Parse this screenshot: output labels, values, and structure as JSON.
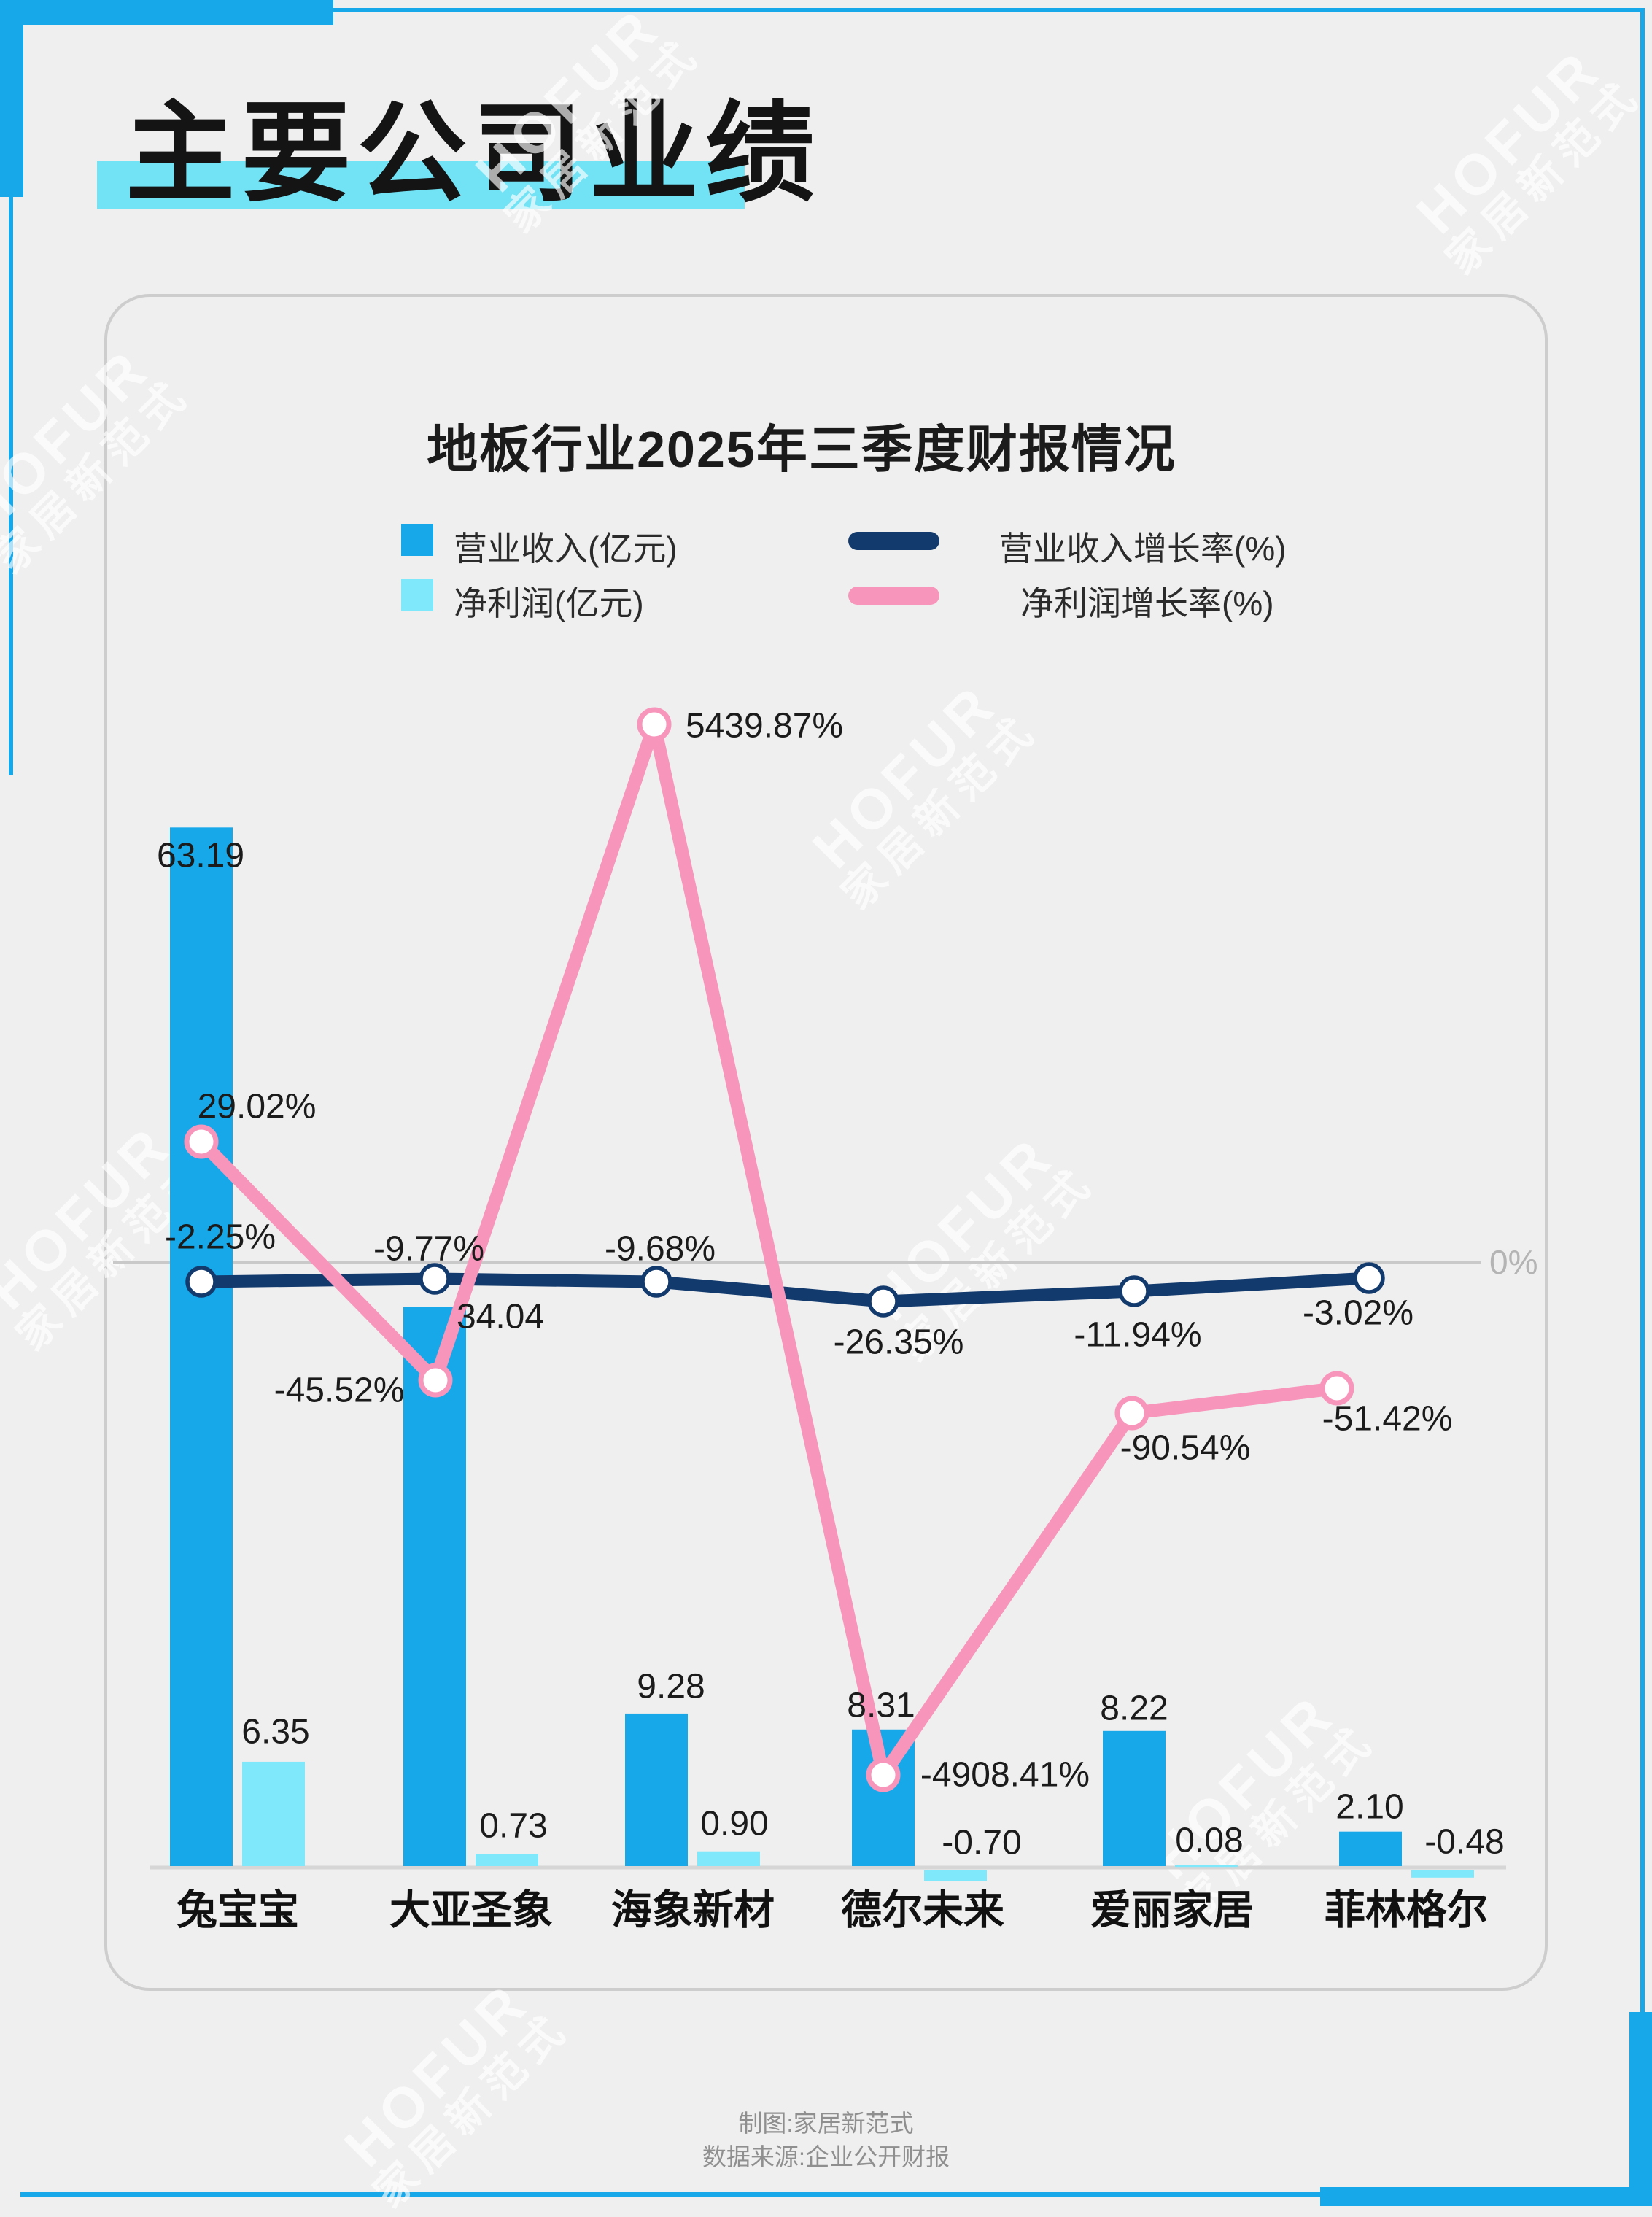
{
  "page": {
    "header_title": "主要公司业绩",
    "footer": {
      "line1": "制图:家居新范式",
      "line2": "数据来源:企业公开财报"
    },
    "watermark": {
      "line1": "HOFUR",
      "line2": "家居新范式"
    }
  },
  "chart_data": {
    "type": "bar+line combo",
    "title": "地板行业2025年三季度财报情况",
    "categories": [
      "兔宝宝",
      "大亚圣象",
      "海象新材",
      "德尔未来",
      "爱丽家居",
      "菲林格尔"
    ],
    "series": [
      {
        "name": "营业收入(亿元)",
        "type": "bar",
        "color": "#17a8ea",
        "values": [
          63.19,
          34.04,
          9.28,
          8.31,
          8.22,
          2.1
        ]
      },
      {
        "name": "净利润(亿元)",
        "type": "bar",
        "color": "#7fe9fb",
        "values": [
          6.35,
          0.73,
          0.9,
          -0.7,
          0.08,
          -0.48
        ]
      },
      {
        "name": "营业收入增长率(%)",
        "type": "line",
        "color": "#123a6d",
        "values": [
          -2.25,
          -9.77,
          -9.68,
          -26.35,
          -11.94,
          -3.02
        ]
      },
      {
        "name": "净利润增长率(%)",
        "type": "line",
        "color": "#f795bb",
        "values": [
          29.02,
          -45.52,
          5439.87,
          -4908.41,
          -90.54,
          -51.42
        ]
      }
    ],
    "zero_line_label": "0%",
    "legend_position": "top",
    "grid": "off",
    "x_axis_baseline": "0 for bars",
    "accent_colors": {
      "frame_blue": "#17a8ea",
      "highlight_cyan": "#72e2f5",
      "label_text": "#1b1b1b",
      "zero_line": "#c9c9c9",
      "axis_line": "#d6d6d6"
    }
  }
}
